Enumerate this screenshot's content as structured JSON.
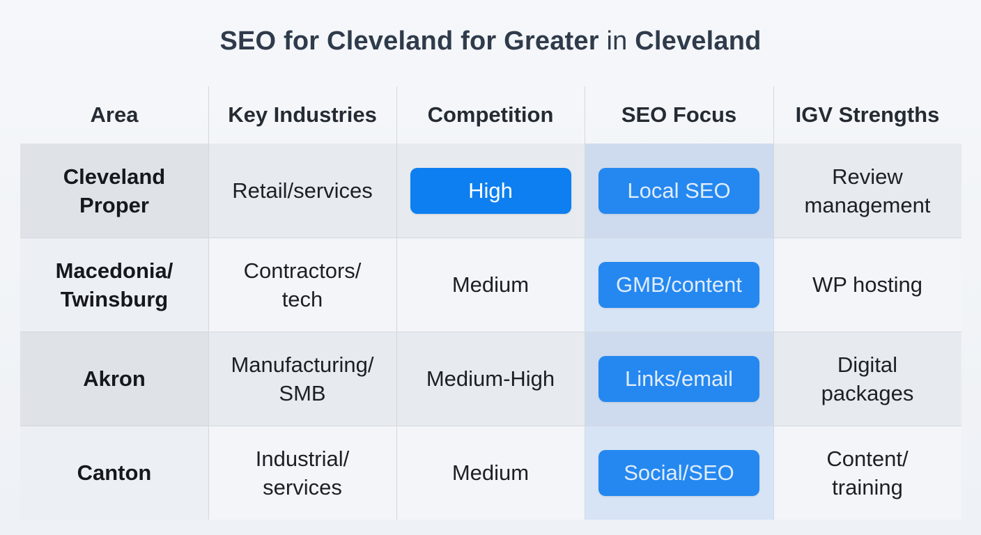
{
  "title": {
    "part1": "SEO for Cleveland for Greater",
    "part2": " in ",
    "part3": "Cleveland"
  },
  "columns": [
    "Area",
    "Key Industries",
    "Competition",
    "SEO Focus",
    "IGV Strengths"
  ],
  "rows": [
    {
      "area": "Cleveland\nProper",
      "industries": "Retail/services",
      "competition": "High",
      "competition_highlight": true,
      "seo_focus": "Local SEO",
      "strengths": "Review\nmanagement"
    },
    {
      "area": "Macedonia/\nTwinsburg",
      "industries": "Contractors/\ntech",
      "competition": "Medium",
      "competition_highlight": false,
      "seo_focus": "GMB/content",
      "strengths": "WP hosting"
    },
    {
      "area": "Akron",
      "industries": "Manufacturing/\nSMB",
      "competition": "Medium-High",
      "competition_highlight": false,
      "seo_focus": "Links/email",
      "strengths": "Digital\npackages"
    },
    {
      "area": "Canton",
      "industries": "Industrial/\nservices",
      "competition": "Medium",
      "competition_highlight": false,
      "seo_focus": "Social/SEO",
      "strengths": "Content/\ntraining"
    }
  ],
  "colors": {
    "pill": "#0d7ff0",
    "title": "#2f3b4a"
  }
}
